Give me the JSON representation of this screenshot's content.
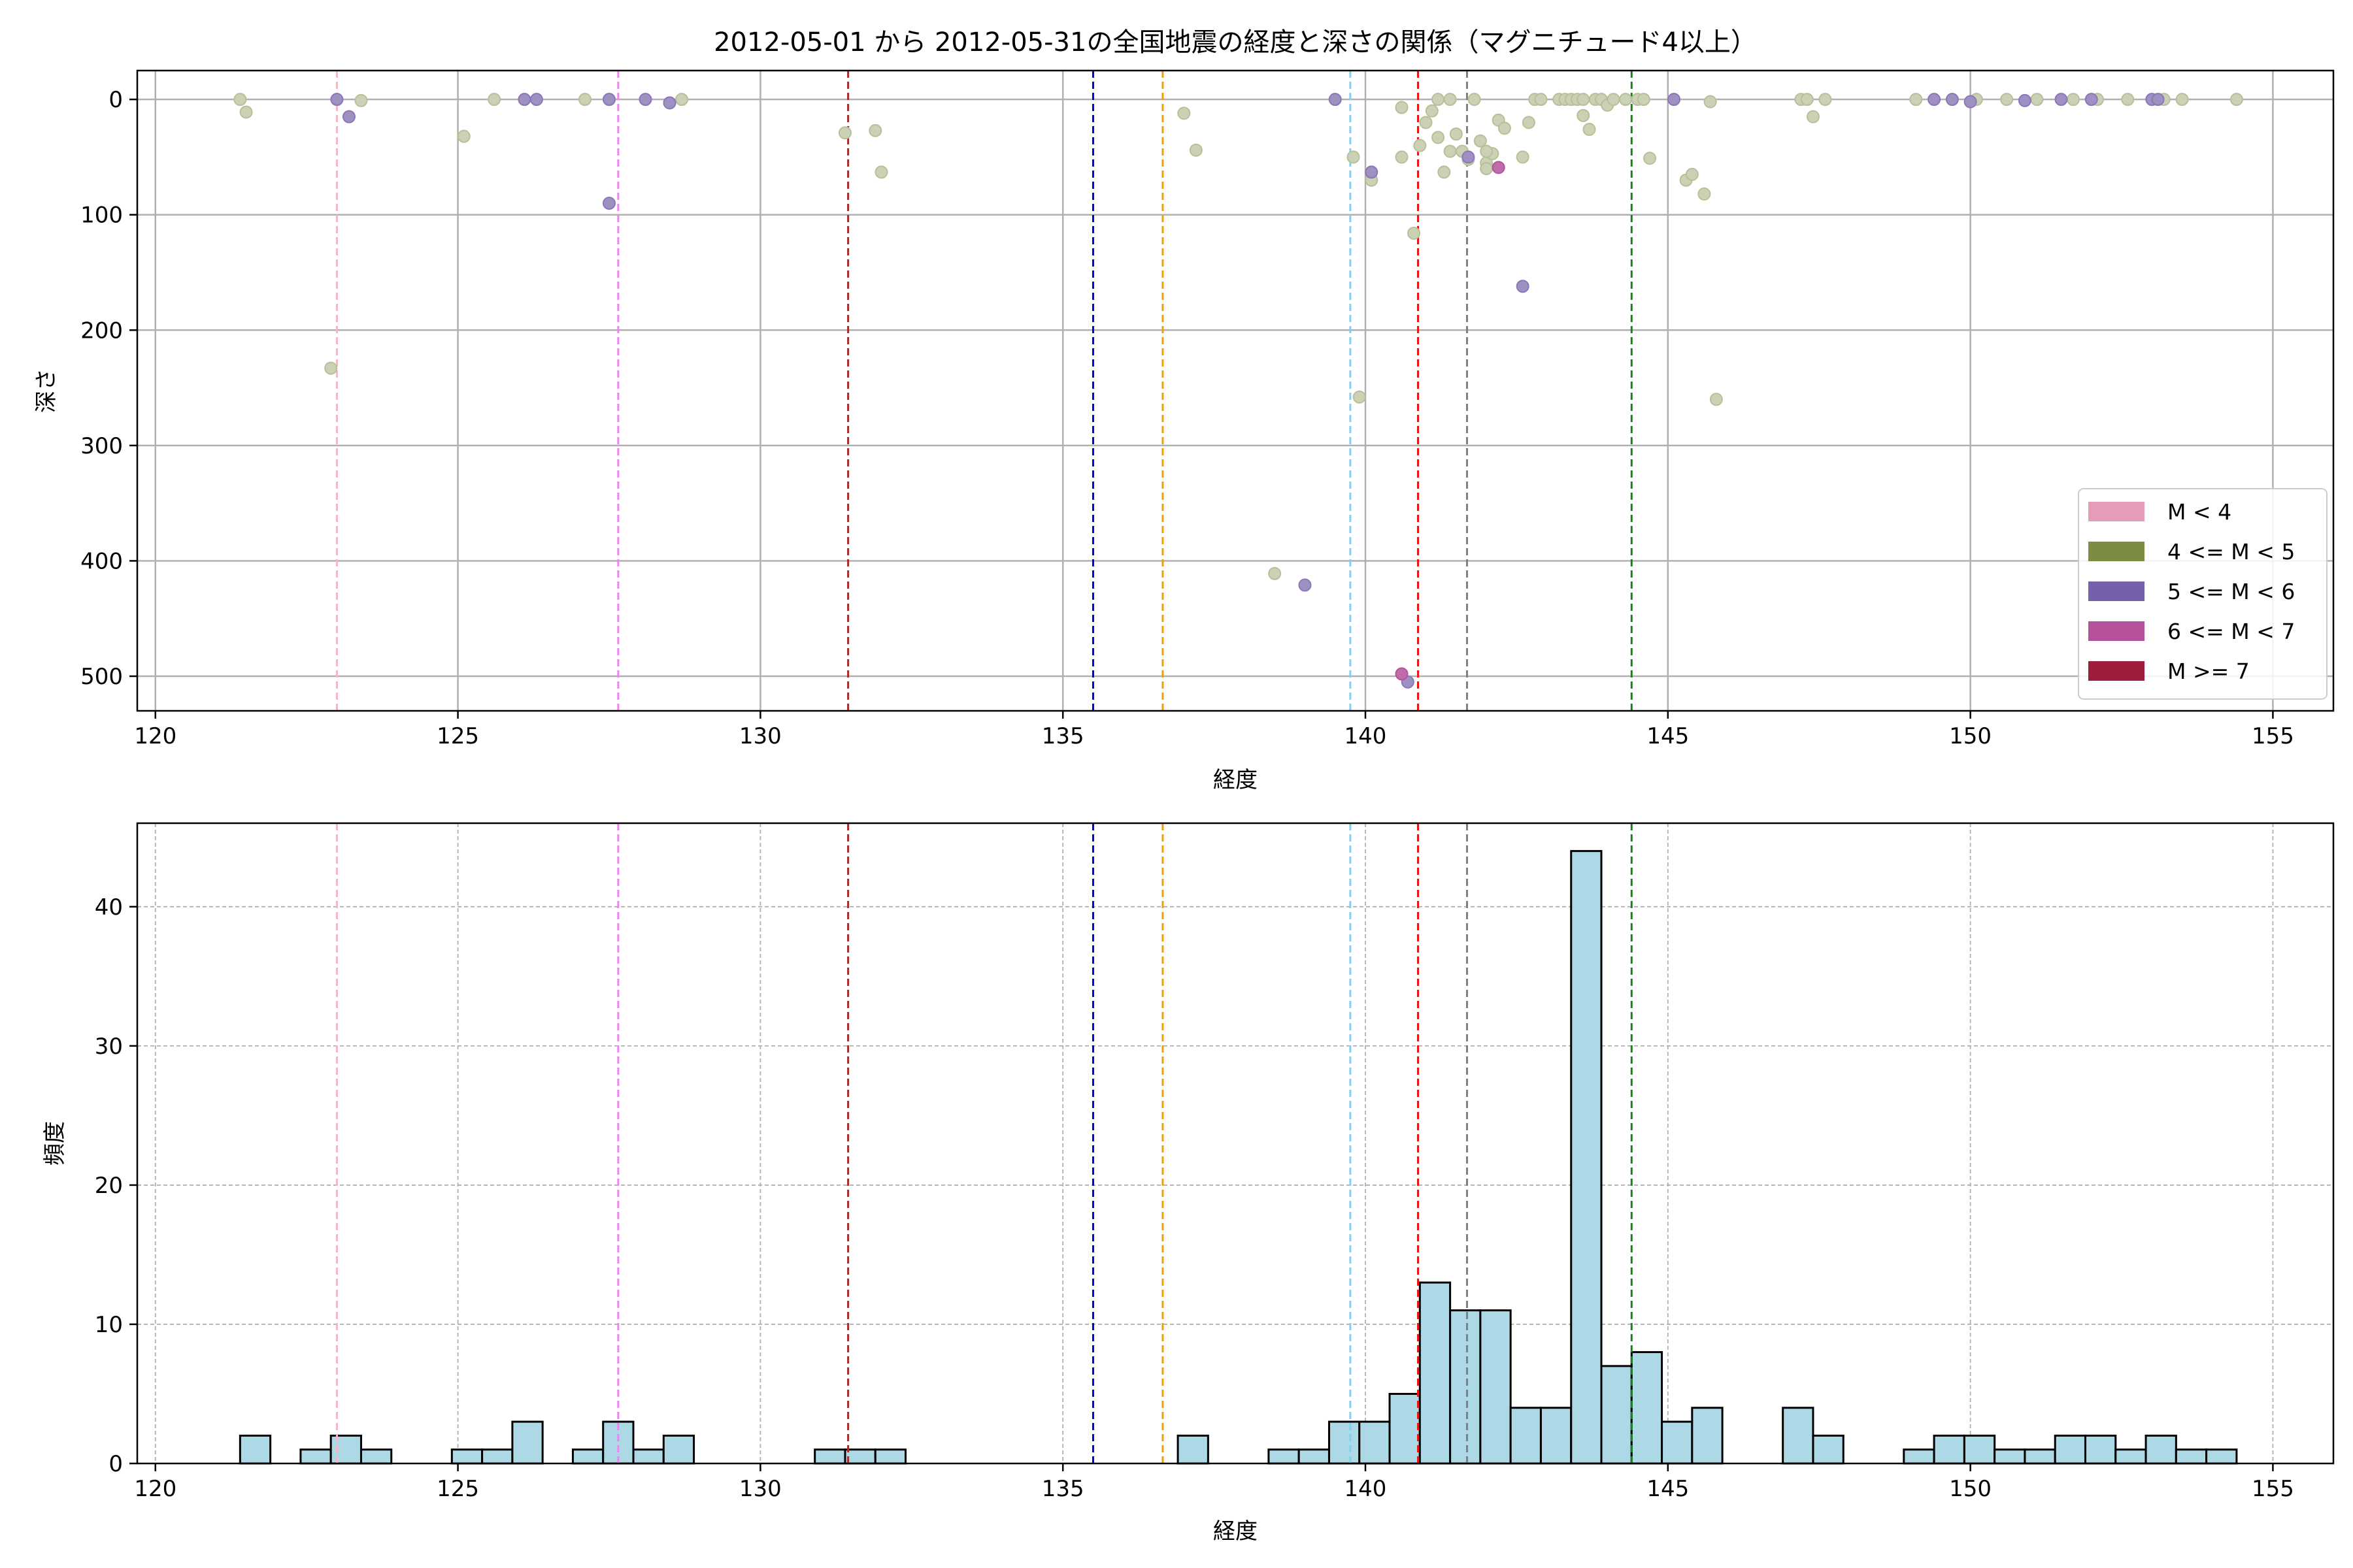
{
  "chart_data": [
    {
      "type": "scatter",
      "title": "2012-05-01 から 2012-05-31の全国地震の経度と深さの関係（マグニチュード4以上）",
      "xlabel": "経度",
      "ylabel": "深さ",
      "xlim": [
        119.7,
        156.0
      ],
      "ylim": [
        530,
        -25
      ],
      "y_inverted": true,
      "xticks": [
        120,
        125,
        130,
        135,
        140,
        145,
        150,
        155
      ],
      "yticks": [
        0,
        100,
        200,
        300,
        400,
        500
      ],
      "grid": true,
      "legend_position": "lower-right",
      "legend": [
        {
          "label": "M < 4",
          "color": "#e59cb8"
        },
        {
          "label": "4 <= M < 5",
          "color": "#7c8c45"
        },
        {
          "label": "5 <= M < 6",
          "color": "#7560a9"
        },
        {
          "label": "6 <= M < 7",
          "color": "#b5529b"
        },
        {
          "label": "M >= 7",
          "color": "#9e1c3c"
        }
      ],
      "series": [
        {
          "name": "4 <= M < 5",
          "color": "#7c8c45",
          "opacity": 0.4,
          "points": [
            [
              121.4,
              0
            ],
            [
              121.5,
              11
            ],
            [
              122.9,
              233
            ],
            [
              123.4,
              1
            ],
            [
              125.1,
              32
            ],
            [
              125.6,
              0
            ],
            [
              127.1,
              0
            ],
            [
              127.5,
              0
            ],
            [
              128.7,
              0
            ],
            [
              131.4,
              29
            ],
            [
              131.9,
              27
            ],
            [
              132.0,
              63
            ],
            [
              137.0,
              12
            ],
            [
              137.2,
              44
            ],
            [
              138.5,
              411
            ],
            [
              139.8,
              50
            ],
            [
              139.9,
              258
            ],
            [
              140.1,
              70
            ],
            [
              140.6,
              7
            ],
            [
              140.6,
              50
            ],
            [
              140.8,
              116
            ],
            [
              140.9,
              40
            ],
            [
              141.0,
              20
            ],
            [
              141.1,
              10
            ],
            [
              141.2,
              33
            ],
            [
              141.3,
              63
            ],
            [
              141.4,
              45
            ],
            [
              141.5,
              30
            ],
            [
              141.6,
              45
            ],
            [
              141.2,
              0
            ],
            [
              141.4,
              0
            ],
            [
              141.8,
              0
            ],
            [
              141.9,
              36
            ],
            [
              142.0,
              55
            ],
            [
              142.0,
              60
            ],
            [
              142.1,
              47
            ],
            [
              142.2,
              18
            ],
            [
              142.3,
              25
            ],
            [
              142.0,
              45
            ],
            [
              141.7,
              52
            ],
            [
              142.6,
              50
            ],
            [
              142.7,
              20
            ],
            [
              142.8,
              0
            ],
            [
              142.9,
              0
            ],
            [
              143.2,
              0
            ],
            [
              143.3,
              0
            ],
            [
              143.4,
              0
            ],
            [
              143.5,
              0
            ],
            [
              143.6,
              0
            ],
            [
              143.6,
              14
            ],
            [
              143.7,
              26
            ],
            [
              143.8,
              0
            ],
            [
              143.9,
              0
            ],
            [
              144.0,
              5
            ],
            [
              144.1,
              0
            ],
            [
              144.3,
              0
            ],
            [
              144.5,
              0
            ],
            [
              144.6,
              0
            ],
            [
              144.7,
              51
            ],
            [
              145.3,
              70
            ],
            [
              145.4,
              65
            ],
            [
              145.6,
              82
            ],
            [
              145.7,
              2
            ],
            [
              145.8,
              260
            ],
            [
              147.2,
              0
            ],
            [
              147.3,
              0
            ],
            [
              147.4,
              15
            ],
            [
              147.6,
              0
            ],
            [
              149.1,
              0
            ],
            [
              150.1,
              0
            ],
            [
              150.6,
              0
            ],
            [
              151.1,
              0
            ],
            [
              151.7,
              0
            ],
            [
              152.1,
              0
            ],
            [
              152.6,
              0
            ],
            [
              153.2,
              0
            ],
            [
              153.5,
              0
            ],
            [
              154.4,
              0
            ]
          ]
        },
        {
          "name": "5 <= M < 6",
          "color": "#7560a9",
          "opacity": 0.7,
          "points": [
            [
              123.0,
              0
            ],
            [
              123.2,
              15
            ],
            [
              126.1,
              0
            ],
            [
              126.3,
              0
            ],
            [
              127.5,
              0
            ],
            [
              127.5,
              90
            ],
            [
              128.1,
              0
            ],
            [
              128.5,
              3
            ],
            [
              139.0,
              421
            ],
            [
              139.5,
              0
            ],
            [
              140.1,
              63
            ],
            [
              140.7,
              505
            ],
            [
              141.7,
              50
            ],
            [
              142.6,
              162
            ],
            [
              145.1,
              0
            ],
            [
              149.4,
              0
            ],
            [
              149.7,
              0
            ],
            [
              150.0,
              2
            ],
            [
              150.9,
              1
            ],
            [
              151.5,
              0
            ],
            [
              152.0,
              0
            ],
            [
              153.0,
              0
            ],
            [
              153.1,
              0
            ]
          ]
        },
        {
          "name": "6 <= M < 7",
          "color": "#b5529b",
          "opacity": 0.85,
          "points": [
            [
              140.6,
              498
            ],
            [
              142.2,
              59
            ]
          ]
        }
      ],
      "reference_lines": [
        {
          "x": 123.0,
          "color": "#f5b7c8"
        },
        {
          "x": 127.65,
          "color": "#ee82ee"
        },
        {
          "x": 131.45,
          "color": "#a52a2a"
        },
        {
          "x": 135.5,
          "color": "#0000dd"
        },
        {
          "x": 136.65,
          "color": "#f0a000"
        },
        {
          "x": 139.75,
          "color": "#87ceeb"
        },
        {
          "x": 140.87,
          "color": "#ee1111"
        },
        {
          "x": 141.68,
          "color": "#808080"
        },
        {
          "x": 144.4,
          "color": "#118811"
        }
      ]
    },
    {
      "type": "bar",
      "xlabel": "経度",
      "ylabel": "頻度",
      "xlim": [
        119.7,
        156.0
      ],
      "ylim": [
        0,
        46
      ],
      "xticks": [
        120,
        125,
        130,
        135,
        140,
        145,
        150,
        155
      ],
      "yticks": [
        0,
        10,
        20,
        30,
        40
      ],
      "grid": true,
      "bar_color": "#add8e6",
      "bar_edge_color": "#000000",
      "bin_width": 0.5,
      "bins": [
        [
          121.4,
          2
        ],
        [
          122.4,
          1
        ],
        [
          122.9,
          2
        ],
        [
          123.4,
          1
        ],
        [
          124.9,
          1
        ],
        [
          125.4,
          1
        ],
        [
          125.9,
          3
        ],
        [
          126.9,
          1
        ],
        [
          127.4,
          3
        ],
        [
          127.9,
          1
        ],
        [
          128.4,
          2
        ],
        [
          130.9,
          1
        ],
        [
          131.4,
          1
        ],
        [
          131.9,
          1
        ],
        [
          136.9,
          2
        ],
        [
          138.4,
          1
        ],
        [
          138.9,
          1
        ],
        [
          139.4,
          3
        ],
        [
          139.9,
          3
        ],
        [
          140.4,
          5
        ],
        [
          140.9,
          13
        ],
        [
          141.4,
          11
        ],
        [
          141.9,
          11
        ],
        [
          142.4,
          4
        ],
        [
          142.9,
          4
        ],
        [
          143.4,
          44
        ],
        [
          143.9,
          7
        ],
        [
          144.4,
          8
        ],
        [
          144.9,
          3
        ],
        [
          145.4,
          4
        ],
        [
          146.9,
          4
        ],
        [
          147.4,
          2
        ],
        [
          148.9,
          1
        ],
        [
          149.4,
          2
        ],
        [
          149.9,
          2
        ],
        [
          150.4,
          1
        ],
        [
          150.9,
          1
        ],
        [
          151.4,
          2
        ],
        [
          151.9,
          2
        ],
        [
          152.4,
          1
        ],
        [
          152.9,
          2
        ],
        [
          153.4,
          1
        ],
        [
          153.9,
          1
        ]
      ],
      "reference_lines": [
        {
          "x": 123.0,
          "color": "#f5b7c8"
        },
        {
          "x": 127.65,
          "color": "#ee82ee"
        },
        {
          "x": 131.45,
          "color": "#a52a2a"
        },
        {
          "x": 135.5,
          "color": "#0000dd"
        },
        {
          "x": 136.65,
          "color": "#f0a000"
        },
        {
          "x": 139.75,
          "color": "#87ceeb"
        },
        {
          "x": 140.87,
          "color": "#ee1111"
        },
        {
          "x": 141.68,
          "color": "#808080"
        },
        {
          "x": 144.4,
          "color": "#118811"
        }
      ]
    }
  ]
}
